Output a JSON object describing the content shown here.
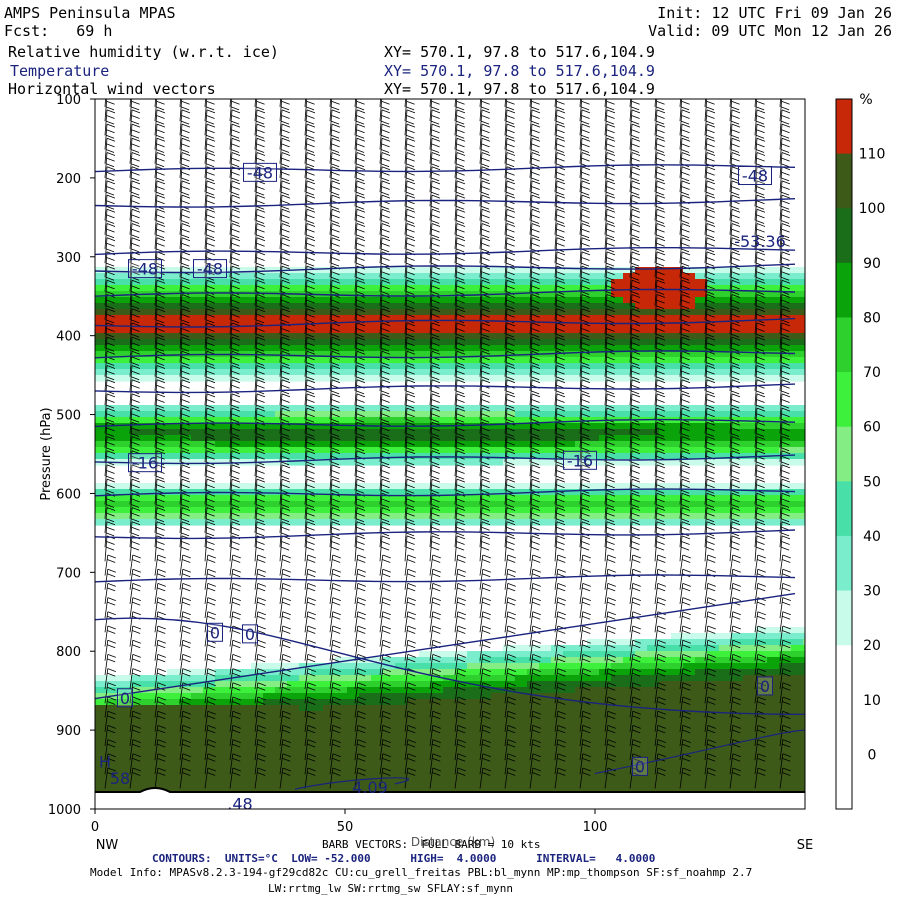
{
  "header": {
    "title": "AMPS Peninsula MPAS",
    "fcst_label": "Fcst:",
    "fcst_value": "69 h",
    "init": "Init: 12 UTC Fri 09 Jan 26",
    "valid": "Valid: 09 UTC Mon 12 Jan 26",
    "fields": [
      {
        "name": "Relative humidity (w.r.t. ice)",
        "xy": "XY= 570.1, 97.8 to 517.6,104.9"
      },
      {
        "name": "Temperature",
        "xy": "XY= 570.1, 97.8 to 517.6,104.9"
      },
      {
        "name": "Horizontal wind vectors",
        "xy": "XY= 570.1, 97.8 to 517.6,104.9"
      }
    ]
  },
  "chart_data": {
    "type": "heatmap",
    "ylabel": "Pressure (hPa)",
    "xlabel": "Distance (km)",
    "x_range": [
      0,
      142
    ],
    "y_range": [
      1000,
      100
    ],
    "x_ticks": [
      "0",
      "50",
      "100"
    ],
    "x_tick_values": [
      0,
      50,
      100
    ],
    "y_ticks": [
      "100",
      "200",
      "300",
      "400",
      "500",
      "600",
      "700",
      "800",
      "900",
      "1000"
    ],
    "y_tick_values": [
      100,
      200,
      300,
      400,
      500,
      600,
      700,
      800,
      900,
      1000
    ],
    "x_end_labels": {
      "left": "NW",
      "right": "SE"
    },
    "colorbar": {
      "unit": "%",
      "labels": [
        "110",
        "100",
        "90",
        "80",
        "70",
        "60",
        "50",
        "40",
        "30",
        "20",
        "10",
        "0"
      ],
      "colors": [
        "#c62808",
        "#3d5a18",
        "#1a6e1a",
        "#0aa30a",
        "#2ed02e",
        "#3cf03c",
        "#84ee84",
        "#48e0a8",
        "#7aeecc",
        "#c8fbea",
        "#ffffff",
        "#ffffff",
        "#ffffff"
      ]
    },
    "temperature_labels": [
      {
        "text": "-48",
        "x": 33,
        "p": 193
      },
      {
        "text": "-48",
        "x": 132,
        "p": 197
      },
      {
        "text": "-53.36",
        "x": 133,
        "p": 280
      },
      {
        "text": "-48",
        "x": 10,
        "p": 315
      },
      {
        "text": "-48",
        "x": 23,
        "p": 315
      },
      {
        "text": "-16",
        "x": 10,
        "p": 561
      },
      {
        "text": "-16",
        "x": 97,
        "p": 558
      },
      {
        "text": "0",
        "x": 24,
        "p": 776
      },
      {
        "text": "0",
        "x": 31,
        "p": 778
      },
      {
        "text": "0",
        "x": 6,
        "p": 859
      },
      {
        "text": "0",
        "x": 134,
        "p": 844
      },
      {
        "text": "0",
        "x": 109,
        "p": 946
      },
      {
        "text": "H",
        "x": 2,
        "p": 940
      },
      {
        "text": "58",
        "x": 5,
        "p": 961
      },
      {
        "text": "4.09",
        "x": 55,
        "p": 972
      },
      {
        "text": ".48",
        "x": 29,
        "p": 993
      }
    ]
  },
  "footer": {
    "barb": "BARB VECTORS:  FULL BARB = 10 kts",
    "contours_label": "CONTOURS:",
    "units": "UNITS=°C",
    "low": "LOW= -52.000",
    "high": "HIGH=  4.0000",
    "interval": "INTERVAL=   4.0000",
    "model_info": "Model Info: MPASv8.2.3-194-gf29cd82c CU:cu_grell_freitas PBL:bl_mynn MP:mp_thompson SF:sf_noahmp 2.7",
    "model_info2": "LW:rrtmg_lw SW:rrtmg_sw SFLAY:sf_mynn"
  }
}
